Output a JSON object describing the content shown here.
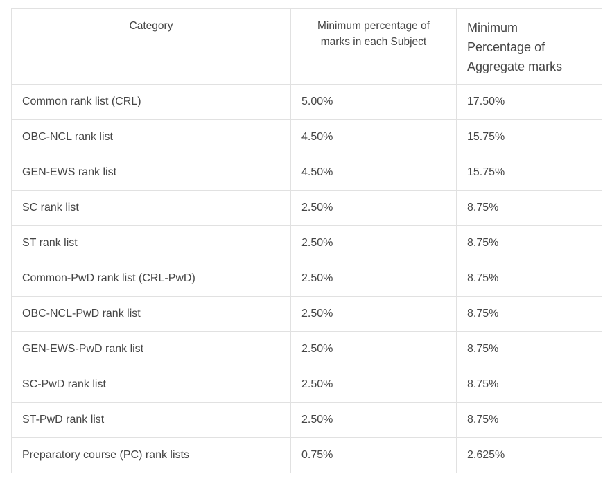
{
  "colors": {
    "background": "#ffffff",
    "border": "#e1e1e1",
    "text": "#454545"
  },
  "chart_data": {
    "type": "table",
    "columns": [
      "Category",
      "Minimum percentage of marks in each Subject",
      "Minimum Percentage of Aggregate marks"
    ],
    "rows": [
      [
        "Common rank list (CRL)",
        "5.00%",
        "17.50%"
      ],
      [
        "OBC-NCL rank list",
        "4.50%",
        "15.75%"
      ],
      [
        "GEN-EWS rank list",
        "4.50%",
        "15.75%"
      ],
      [
        "SC rank list",
        "2.50%",
        "8.75%"
      ],
      [
        "ST rank list",
        "2.50%",
        "8.75%"
      ],
      [
        "Common-PwD rank list (CRL-PwD)",
        "2.50%",
        "8.75%"
      ],
      [
        "OBC-NCL-PwD rank list",
        "2.50%",
        "8.75%"
      ],
      [
        "GEN-EWS-PwD rank list",
        "2.50%",
        "8.75%"
      ],
      [
        "SC-PwD rank list",
        "2.50%",
        "8.75%"
      ],
      [
        "ST-PwD rank list",
        "2.50%",
        "8.75%"
      ],
      [
        "Preparatory course (PC) rank lists",
        "0.75%",
        "2.625%"
      ]
    ]
  }
}
